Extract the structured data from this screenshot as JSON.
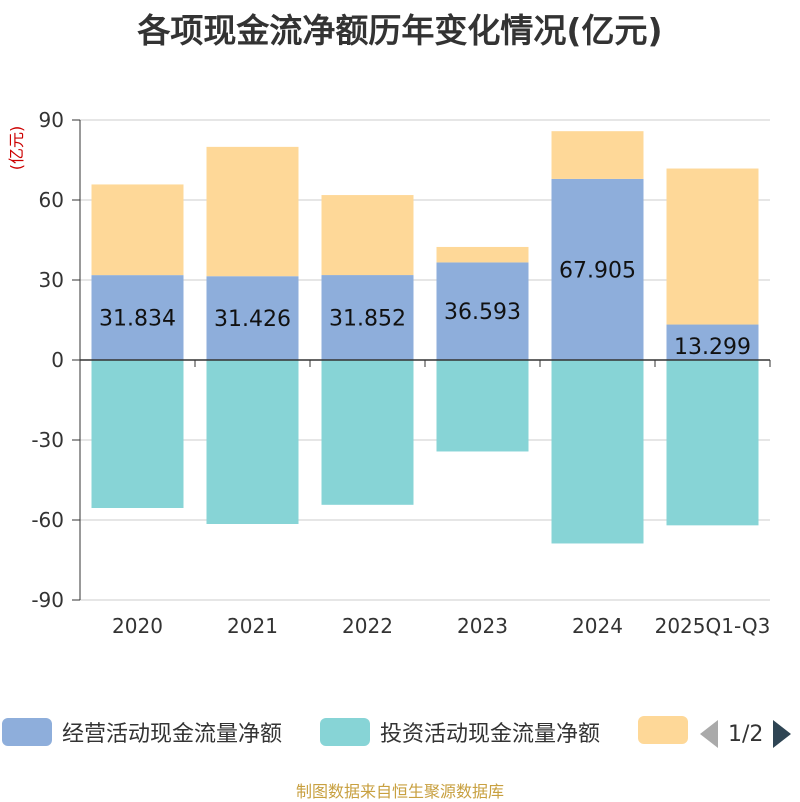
{
  "chart_data": {
    "type": "bar",
    "title": "各项现金流净额历年变化情况(亿元)",
    "ylabel": "(亿元)",
    "ylim": [
      -90,
      90
    ],
    "yticks": [
      90,
      60,
      30,
      0,
      -30,
      -60,
      -90
    ],
    "categories": [
      "2020",
      "2021",
      "2022",
      "2023",
      "2024",
      "2025Q1-Q3"
    ],
    "series": [
      {
        "name": "经营活动现金流量净额",
        "color": "#8eaedb",
        "values": [
          31.834,
          31.426,
          31.852,
          36.593,
          67.905,
          13.299
        ],
        "labels": [
          "31.834",
          "31.426",
          "31.852",
          "36.593",
          "67.905",
          "13.299"
        ]
      },
      {
        "name": "投资活动现金流量净额",
        "color": "#87d4d6",
        "values": [
          -55.5,
          -61.5,
          -54.3,
          -34.3,
          -68.8,
          -62.0
        ]
      },
      {
        "name": "",
        "color": "#fed898",
        "values": [
          34.0,
          48.5,
          30.0,
          5.8,
          17.9,
          58.5
        ]
      }
    ]
  },
  "legend": {
    "items": [
      {
        "label": "经营活动现金流量净额",
        "color": "#8eaedb"
      },
      {
        "label": "投资活动现金流量净额",
        "color": "#87d4d6"
      },
      {
        "label": "",
        "color": "#fed898"
      }
    ],
    "pager": "1/2"
  },
  "footer": "制图数据来自恒生聚源数据库"
}
